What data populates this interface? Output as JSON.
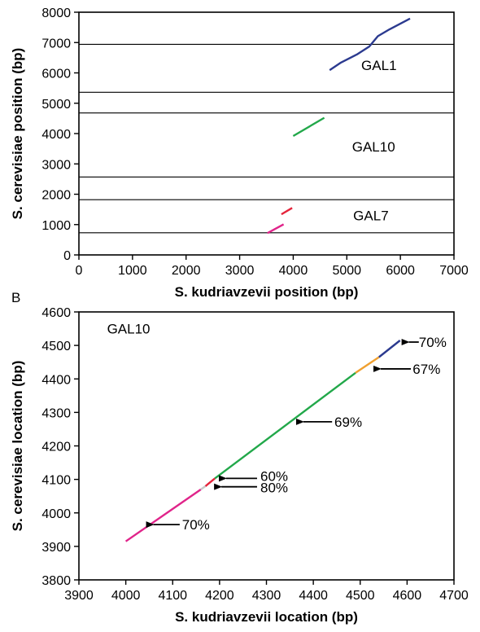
{
  "chart_data": [
    {
      "type": "line",
      "xlabel": "S. kudriavzevii position (bp)",
      "ylabel": "S. cerevisiae position (bp)",
      "xlim": [
        0,
        7000
      ],
      "ylim": [
        0,
        8000
      ],
      "xticks": [
        "0",
        "1000",
        "2000",
        "3000",
        "4000",
        "5000",
        "6000",
        "7000"
      ],
      "yticks": [
        "0",
        "1000",
        "2000",
        "3000",
        "4000",
        "5000",
        "6000",
        "7000",
        "8000"
      ],
      "gene_boundaries": [
        730,
        1820,
        2570,
        4680,
        5360,
        6940
      ],
      "gene_labels": [
        {
          "text": "GAL1",
          "x": 5600,
          "y": 6250
        },
        {
          "text": "GAL10",
          "x": 5500,
          "y": 3570
        },
        {
          "text": "GAL7",
          "x": 5450,
          "y": 1300
        }
      ],
      "series": [
        {
          "color": "#2b3a8f",
          "points": [
            [
              4680,
              6090
            ],
            [
              4880,
              6330
            ],
            [
              5200,
              6620
            ],
            [
              5420,
              6870
            ],
            [
              5580,
              7210
            ],
            [
              5800,
              7440
            ],
            [
              6180,
              7790
            ]
          ]
        },
        {
          "color": "#22a84a",
          "points": [
            [
              4000,
              3920
            ],
            [
              4580,
              4520
            ]
          ]
        },
        {
          "color": "#e5243b",
          "points": [
            [
              3780,
              1340
            ],
            [
              3980,
              1550
            ]
          ]
        },
        {
          "color": "#e0248a",
          "points": [
            [
              3520,
              720
            ],
            [
              3820,
              1010
            ]
          ]
        }
      ]
    },
    {
      "type": "line",
      "panel_label": "B",
      "annotation": "GAL10",
      "xlabel": "S. kudriavzevii location (bp)",
      "ylabel": "S. cerevisiae location (bp)",
      "xlim": [
        3900,
        4700
      ],
      "ylim": [
        3800,
        4600
      ],
      "xticks": [
        "3900",
        "4000",
        "4100",
        "4200",
        "4300",
        "4400",
        "4500",
        "4600",
        "4700"
      ],
      "yticks": [
        "3800",
        "3900",
        "4000",
        "4100",
        "4200",
        "4300",
        "4400",
        "4500",
        "4600"
      ],
      "series": [
        {
          "color": "#e0248a",
          "points": [
            [
              4000,
              3915
            ],
            [
              4160,
              4070
            ]
          ]
        },
        {
          "color": "#c8c8c8",
          "points": [
            [
              4160,
              4070
            ],
            [
              4170,
              4080
            ]
          ]
        },
        {
          "color": "#e5243b",
          "points": [
            [
              4170,
              4080
            ],
            [
              4190,
              4103
            ]
          ]
        },
        {
          "color": "#22a84a",
          "points": [
            [
              4190,
              4103
            ],
            [
              4490,
              4418
            ]
          ]
        },
        {
          "color": "#f0a030",
          "points": [
            [
              4490,
              4418
            ],
            [
              4540,
              4465
            ]
          ]
        },
        {
          "color": "#2b3a8f",
          "points": [
            [
              4540,
              4465
            ],
            [
              4585,
              4515
            ]
          ]
        }
      ],
      "annotations": [
        {
          "text": "70%",
          "arrow_from": [
            4115,
            3965
          ],
          "arrow_to": [
            4045,
            3965
          ],
          "text_at": [
            4120,
            3965
          ]
        },
        {
          "text": "80%",
          "arrow_from": [
            4280,
            4078
          ],
          "arrow_to": [
            4190,
            4078
          ],
          "text_at": [
            4287,
            4076
          ]
        },
        {
          "text": "60%",
          "arrow_from": [
            4280,
            4103
          ],
          "arrow_to": [
            4200,
            4103
          ],
          "text_at": [
            4287,
            4110
          ]
        },
        {
          "text": "69%",
          "arrow_from": [
            4440,
            4272
          ],
          "arrow_to": [
            4365,
            4272
          ],
          "text_at": [
            4445,
            4272
          ]
        },
        {
          "text": "67%",
          "arrow_from": [
            4608,
            4430
          ],
          "arrow_to": [
            4530,
            4430
          ],
          "text_at": [
            4612,
            4430
          ]
        },
        {
          "text": "70%",
          "arrow_from": [
            4625,
            4510
          ],
          "arrow_to": [
            4590,
            4510
          ],
          "text_at": [
            4625,
            4510
          ]
        }
      ]
    }
  ]
}
